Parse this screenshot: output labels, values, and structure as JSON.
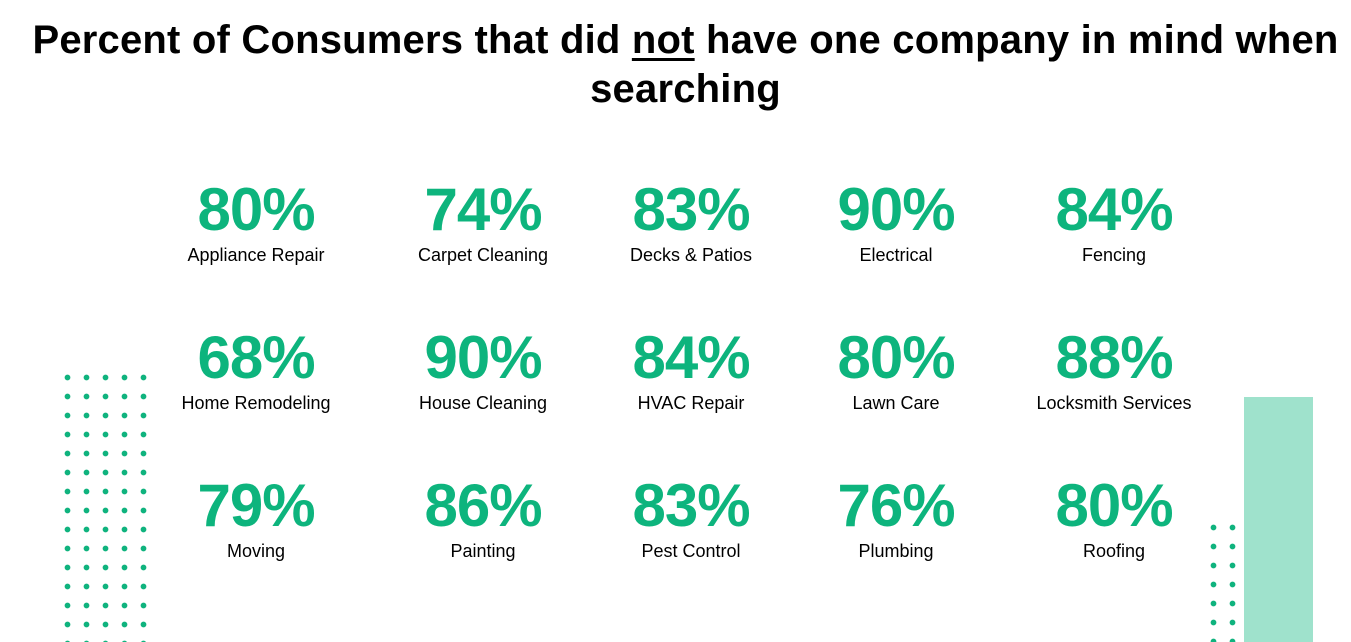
{
  "title": {
    "before": "Percent of Consumers that did ",
    "emphasis": "not",
    "after": " have one company in mind when searching"
  },
  "colors": {
    "accent": "#0db47d",
    "dots": "#0fb37e",
    "bar": "#9fe2cc"
  },
  "stats": [
    {
      "value": "80%",
      "label": "Appliance Repair"
    },
    {
      "value": "74%",
      "label": "Carpet Cleaning"
    },
    {
      "value": "83%",
      "label": "Decks & Patios"
    },
    {
      "value": "90%",
      "label": "Electrical"
    },
    {
      "value": "84%",
      "label": "Fencing"
    },
    {
      "value": "68%",
      "label": "Home Remodeling"
    },
    {
      "value": "90%",
      "label": "House Cleaning"
    },
    {
      "value": "84%",
      "label": "HVAC Repair"
    },
    {
      "value": "80%",
      "label": "Lawn Care"
    },
    {
      "value": "88%",
      "label": "Locksmith Services"
    },
    {
      "value": "79%",
      "label": "Moving"
    },
    {
      "value": "86%",
      "label": "Painting"
    },
    {
      "value": "83%",
      "label": "Pest Control"
    },
    {
      "value": "76%",
      "label": "Plumbing"
    },
    {
      "value": "80%",
      "label": "Roofing"
    }
  ]
}
